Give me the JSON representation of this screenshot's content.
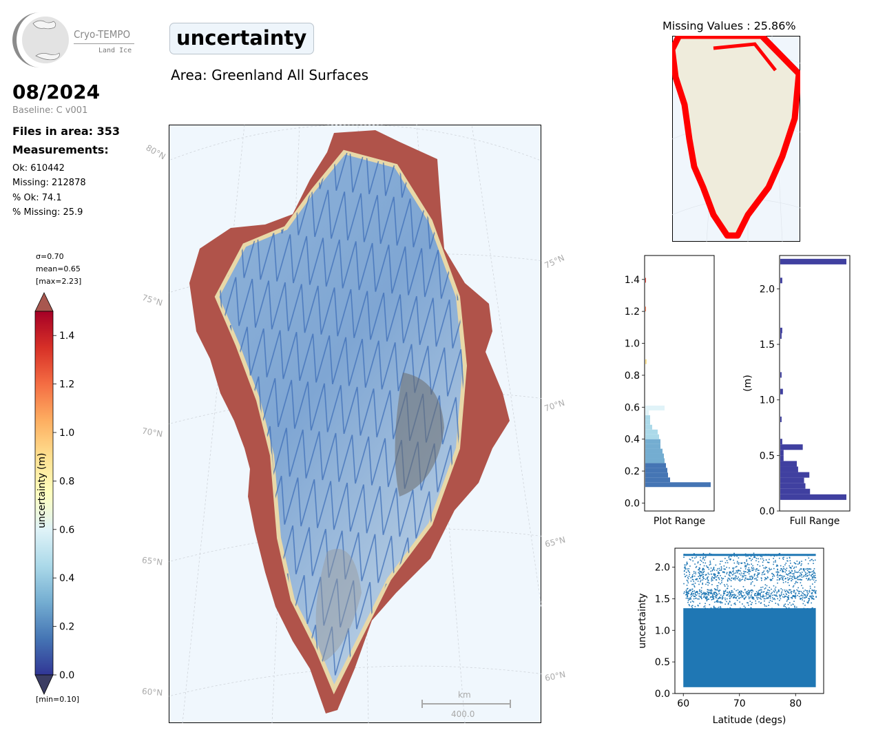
{
  "logo": {
    "title": "Cryo-TEMPO",
    "subtitle": "Land Ice"
  },
  "header": {
    "variable": "uncertainty",
    "area": "Area: Greenland All Surfaces"
  },
  "info": {
    "date": "08/2024",
    "baseline": "Baseline: C v001",
    "files": "Files in area: 353",
    "measurements_heading": "Measurements:",
    "ok": "Ok: 610442",
    "missing": "Missing: 212878",
    "pct_ok": "% Ok: 74.1",
    "pct_missing": "% Missing: 25.9"
  },
  "colorbar": {
    "sigma": "σ=0.70",
    "mean": "mean=0.65",
    "max": "[max=2.23]",
    "min": "[min=0.10]",
    "label": "uncertainty (m)",
    "ticks": [
      "0.0",
      "0.2",
      "0.4",
      "0.6",
      "0.8",
      "1.0",
      "1.2",
      "1.4"
    ],
    "range": [
      0.0,
      1.5
    ]
  },
  "map": {
    "lat_labels": [
      "80°N",
      "75°N",
      "70°N",
      "65°N",
      "60°N",
      "75°N",
      "70°N",
      "65°N",
      "60°N"
    ],
    "scale_unit": "km",
    "scale_value": "400.0"
  },
  "missing_map": {
    "title": "Missing Values : 25.86%"
  },
  "chart_data": [
    {
      "type": "bar",
      "orientation": "horizontal",
      "xlabel": "Plot Range",
      "ylabel": "",
      "ylim": [
        -0.05,
        1.55
      ],
      "yticks": [
        "0.0",
        "0.2",
        "0.4",
        "0.6",
        "0.8",
        "1.0",
        "1.2",
        "1.4"
      ],
      "bins": [
        0.1,
        0.13,
        0.16,
        0.19,
        0.22,
        0.25,
        0.28,
        0.31,
        0.34,
        0.37,
        0.4,
        0.43,
        0.46,
        0.49,
        0.52,
        0.55,
        0.58,
        0.87,
        1.2,
        1.38
      ],
      "values": [
        95,
        36,
        33,
        32,
        30,
        28,
        27,
        25,
        22,
        22,
        20,
        18,
        10,
        7,
        7,
        5,
        28,
        2,
        1,
        1
      ]
    },
    {
      "type": "bar",
      "orientation": "horizontal",
      "xlabel": "Full Range",
      "ylabel": "(m)",
      "ylim": [
        0.0,
        2.3
      ],
      "yticks": [
        "0.0",
        "0.5",
        "1.0",
        "1.5",
        "2.0"
      ],
      "bins": [
        0.1,
        0.15,
        0.2,
        0.25,
        0.3,
        0.35,
        0.4,
        0.45,
        0.5,
        0.55,
        0.6,
        0.8,
        1.05,
        1.2,
        1.55,
        1.6,
        2.05,
        2.22
      ],
      "values": [
        100,
        45,
        38,
        36,
        44,
        27,
        25,
        5,
        5,
        34,
        3,
        2,
        4,
        2,
        2,
        3,
        3,
        100
      ]
    },
    {
      "type": "scatter",
      "xlabel": "Latitude (degs)",
      "ylabel": "uncertainty",
      "xlim": [
        58.5,
        85
      ],
      "ylim": [
        0.0,
        2.3
      ],
      "xticks": [
        "60",
        "70",
        "80"
      ],
      "yticks": [
        "0.0",
        "0.5",
        "1.0",
        "1.5",
        "2.0"
      ],
      "x_range": [
        60,
        83.6
      ],
      "y_range": [
        0.1,
        2.23
      ],
      "color": "#1f77b4"
    }
  ]
}
